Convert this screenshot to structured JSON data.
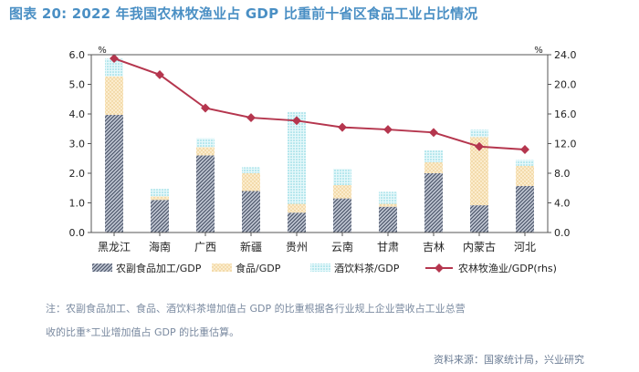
{
  "title": "图表 20: 2022 年我国农林牧渔业占 GDP 比重前十省区食品工业占比情况",
  "note": {
    "line1": "注：农副食品加工、食品、酒饮料茶增加值占 GDP 的比重根据各行业规上企业营收占工业总营",
    "line2": "收的比重*工业增加值占 GDP 的比重估算。"
  },
  "source": "资料来源：国家统计局，兴业研究",
  "colors": {
    "s1": "#5a6478",
    "s2": "#f3d9a6",
    "s3": "#9fe0e8",
    "line": "#b5364e",
    "axis": "#555555",
    "title": "#4a8fc4"
  },
  "chart_data": {
    "type": "bar",
    "stacked": true,
    "categories": [
      "黑龙江",
      "海南",
      "广西",
      "新疆",
      "贵州",
      "云南",
      "甘肃",
      "吉林",
      "内蒙古",
      "河北"
    ],
    "series": [
      {
        "name": "农副食品加工/GDP",
        "axis": "left",
        "values": [
          3.97,
          1.1,
          2.6,
          1.4,
          0.67,
          1.15,
          0.87,
          2.0,
          0.92,
          1.57
        ]
      },
      {
        "name": "食品/GDP",
        "axis": "left",
        "values": [
          1.3,
          0.12,
          0.28,
          0.6,
          0.3,
          0.45,
          0.1,
          0.37,
          2.3,
          0.68
        ]
      },
      {
        "name": "酒饮料茶/GDP",
        "axis": "left",
        "values": [
          0.6,
          0.25,
          0.3,
          0.2,
          3.1,
          0.55,
          0.4,
          0.4,
          0.25,
          0.2
        ]
      },
      {
        "name": "农林牧渔业/GDP(rhs)",
        "axis": "right",
        "type": "line",
        "values": [
          23.5,
          21.3,
          16.8,
          15.5,
          15.1,
          14.2,
          13.9,
          13.5,
          11.6,
          11.2
        ]
      }
    ],
    "left_axis": {
      "unit": "%",
      "min": 0,
      "max": 6,
      "ticks": [
        "0.0",
        "1.0",
        "2.0",
        "3.0",
        "4.0",
        "5.0",
        "6.0"
      ]
    },
    "right_axis": {
      "unit": "%",
      "min": 0,
      "max": 24,
      "ticks": [
        "0.0",
        "4.0",
        "8.0",
        "12.0",
        "16.0",
        "20.0",
        "24.0"
      ]
    },
    "legend_position": "bottom"
  }
}
